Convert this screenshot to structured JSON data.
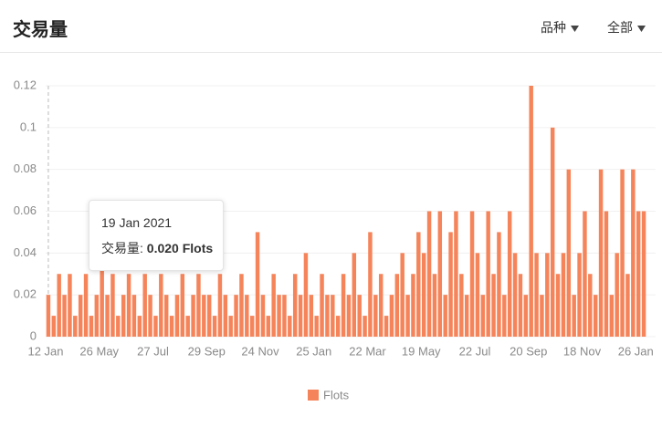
{
  "header": {
    "title": "交易量",
    "filters": [
      "品种",
      "全部"
    ]
  },
  "tooltip": {
    "date": "19 Jan 2021",
    "label": "交易量:",
    "value": "0.020 Flots"
  },
  "chart_data": {
    "type": "bar",
    "categories": [
      "12 Jan",
      null,
      null,
      null,
      null,
      null,
      null,
      null,
      null,
      null,
      "26 May",
      null,
      null,
      null,
      null,
      null,
      null,
      null,
      null,
      null,
      "27 Jul",
      null,
      null,
      null,
      null,
      null,
      null,
      null,
      null,
      null,
      "29 Sep",
      null,
      null,
      null,
      null,
      null,
      null,
      null,
      null,
      null,
      "24 Nov",
      null,
      null,
      null,
      null,
      null,
      null,
      null,
      null,
      null,
      "25 Jan",
      null,
      null,
      null,
      null,
      null,
      null,
      null,
      null,
      null,
      "22 Mar",
      null,
      null,
      null,
      null,
      null,
      null,
      null,
      null,
      null,
      "19 May",
      null,
      null,
      null,
      null,
      null,
      null,
      null,
      null,
      null,
      "22 Jul",
      null,
      null,
      null,
      null,
      null,
      null,
      null,
      null,
      null,
      "20 Sep",
      null,
      null,
      null,
      null,
      null,
      null,
      null,
      null,
      null,
      "18 Nov",
      null,
      null,
      null,
      null,
      null,
      null,
      null,
      null,
      null,
      "26 Jan",
      null
    ],
    "series": [
      {
        "name": "Flots",
        "color": "#f5845a",
        "values": [
          0.02,
          0.01,
          0.03,
          0.02,
          0.03,
          0.01,
          0.02,
          0.03,
          0.01,
          0.02,
          0.04,
          0.02,
          0.03,
          0.01,
          0.02,
          0.03,
          0.02,
          0.01,
          0.03,
          0.02,
          0.01,
          0.03,
          0.02,
          0.01,
          0.02,
          0.03,
          0.01,
          0.02,
          0.03,
          0.02,
          0.02,
          0.01,
          0.03,
          0.02,
          0.01,
          0.02,
          0.03,
          0.02,
          0.01,
          0.05,
          0.02,
          0.01,
          0.03,
          0.02,
          0.02,
          0.01,
          0.03,
          0.02,
          0.04,
          0.02,
          0.01,
          0.03,
          0.02,
          0.02,
          0.01,
          0.03,
          0.02,
          0.04,
          0.02,
          0.01,
          0.05,
          0.02,
          0.03,
          0.01,
          0.02,
          0.03,
          0.04,
          0.02,
          0.03,
          0.05,
          0.04,
          0.06,
          0.03,
          0.06,
          0.02,
          0.05,
          0.06,
          0.03,
          0.02,
          0.06,
          0.04,
          0.02,
          0.06,
          0.03,
          0.05,
          0.02,
          0.06,
          0.04,
          0.03,
          0.02,
          0.12,
          0.04,
          0.02,
          0.04,
          0.1,
          0.03,
          0.04,
          0.08,
          0.02,
          0.04,
          0.06,
          0.03,
          0.02,
          0.08,
          0.06,
          0.02,
          0.04,
          0.08,
          0.03,
          0.08,
          0.06,
          0.06
        ]
      }
    ],
    "ylim": [
      0,
      0.12
    ],
    "yticks": [
      0,
      0.02,
      0.04,
      0.06,
      0.08,
      0.1,
      0.12
    ],
    "grid": true,
    "legend": "bottom"
  }
}
